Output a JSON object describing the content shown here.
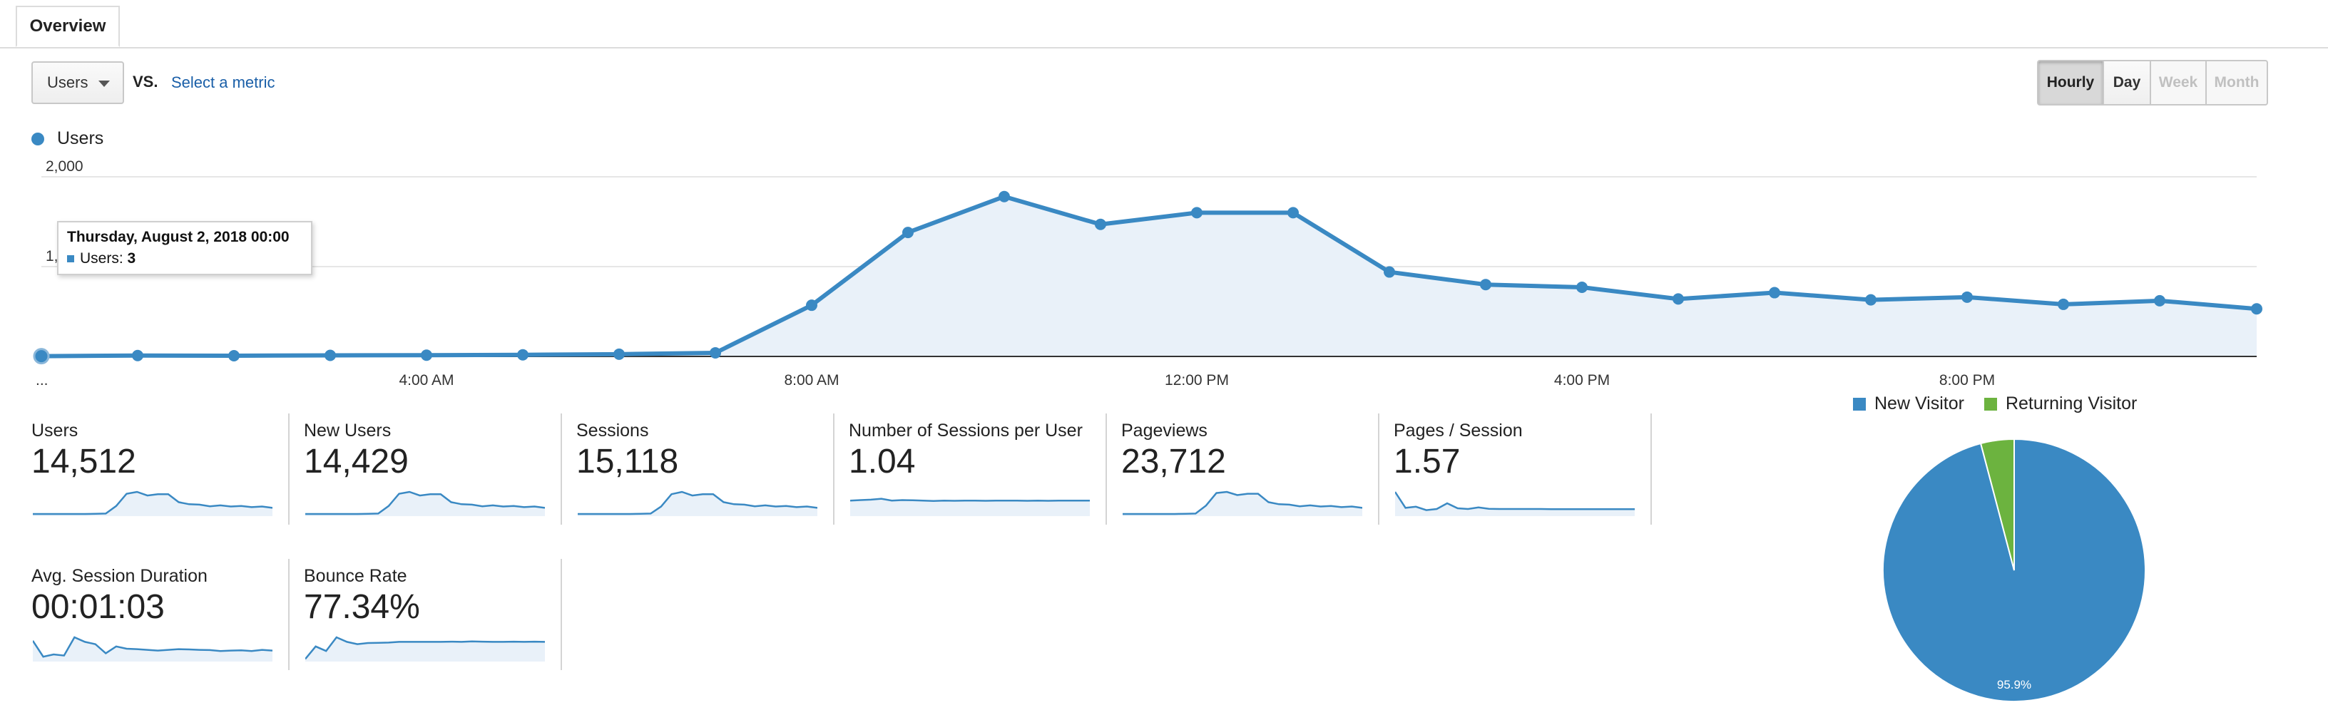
{
  "tabs": {
    "overview": "Overview"
  },
  "controls": {
    "metric": "Users",
    "vs": "VS.",
    "select_metric": "Select a metric",
    "granularity": [
      {
        "label": "Hourly",
        "state": "active"
      },
      {
        "label": "Day",
        "state": "normal"
      },
      {
        "label": "Week",
        "state": "disabled"
      },
      {
        "label": "Month",
        "state": "disabled"
      }
    ]
  },
  "legend": {
    "users": "Users"
  },
  "tooltip": {
    "title": "Thursday, August 2, 2018 00:00",
    "label": "Users:",
    "value": "3"
  },
  "colors": {
    "series": "#3a89c3",
    "area": "#e9f1f9",
    "new_visitor": "#3a89c3",
    "returning_visitor": "#6cb33f"
  },
  "chart_data": [
    {
      "type": "area",
      "series": [
        {
          "name": "Users",
          "values": [
            3,
            10,
            8,
            12,
            14,
            18,
            25,
            40,
            570,
            1380,
            1780,
            1470,
            1600,
            1600,
            940,
            800,
            770,
            640,
            710,
            630,
            660,
            580,
            620,
            530
          ]
        }
      ],
      "x": [
        "00:00",
        "01:00",
        "02:00",
        "03:00",
        "04:00",
        "05:00",
        "06:00",
        "07:00",
        "08:00",
        "09:00",
        "10:00",
        "11:00",
        "12:00",
        "13:00",
        "14:00",
        "15:00",
        "16:00",
        "17:00",
        "18:00",
        "19:00",
        "20:00",
        "21:00",
        "22:00",
        "23:00"
      ],
      "y_ticks": [
        "2,000",
        "1,000"
      ],
      "x_ticks": [
        "...",
        "4:00 AM",
        "8:00 AM",
        "12:00 PM",
        "4:00 PM",
        "8:00 PM"
      ],
      "ylim": [
        0,
        2000
      ],
      "grid": true
    },
    {
      "type": "pie",
      "legend": [
        "New Visitor",
        "Returning Visitor"
      ],
      "values": [
        95.9,
        4.1
      ],
      "slice_label": "95.9%",
      "legend_position": "top"
    }
  ],
  "kpis": [
    {
      "name": "Users",
      "value": "14,512",
      "spark": [
        3,
        3,
        3,
        3,
        3,
        3,
        4,
        5,
        38,
        92,
        100,
        84,
        90,
        90,
        55,
        46,
        44,
        37,
        41,
        36,
        38,
        33,
        36,
        30
      ]
    },
    {
      "name": "New Users",
      "value": "14,429",
      "spark": [
        3,
        3,
        3,
        3,
        3,
        3,
        4,
        5,
        38,
        92,
        100,
        84,
        90,
        90,
        55,
        46,
        44,
        37,
        41,
        36,
        38,
        33,
        36,
        30
      ]
    },
    {
      "name": "Sessions",
      "value": "15,118",
      "spark": [
        3,
        3,
        3,
        3,
        3,
        3,
        4,
        5,
        36,
        90,
        100,
        84,
        90,
        90,
        55,
        46,
        44,
        37,
        41,
        36,
        38,
        33,
        36,
        30
      ]
    },
    {
      "name": "Number of Sessions per User",
      "value": "1.04",
      "spark": [
        62,
        64,
        66,
        70,
        62,
        64,
        63,
        62,
        60,
        62,
        61,
        62,
        62,
        61,
        62,
        62,
        62,
        61,
        62,
        61,
        62,
        62,
        62,
        62
      ]
    },
    {
      "name": "Pageviews",
      "value": "23,712",
      "spark": [
        3,
        3,
        3,
        3,
        3,
        3,
        4,
        5,
        40,
        95,
        100,
        86,
        92,
        92,
        55,
        46,
        44,
        37,
        41,
        36,
        38,
        33,
        36,
        30
      ]
    },
    {
      "name": "Pages / Session",
      "value": "1.57",
      "spark": [
        100,
        30,
        35,
        20,
        25,
        50,
        28,
        25,
        32,
        26,
        25,
        25,
        25,
        25,
        25,
        24,
        24,
        24,
        24,
        24,
        24,
        24,
        24,
        24
      ]
    },
    {
      "name": "Avg. Session Duration",
      "value": "00:01:03",
      "spark": [
        85,
        15,
        25,
        20,
        100,
        80,
        70,
        30,
        60,
        50,
        48,
        45,
        42,
        45,
        48,
        47,
        45,
        44,
        40,
        42,
        43,
        40,
        45,
        42
      ]
    },
    {
      "name": "Bounce Rate",
      "value": "77.34%",
      "spark": [
        5,
        60,
        40,
        100,
        80,
        70,
        75,
        76,
        77,
        80,
        80,
        80,
        80,
        80,
        81,
        80,
        82,
        81,
        80,
        80,
        81,
        80,
        81,
        80
      ]
    }
  ]
}
